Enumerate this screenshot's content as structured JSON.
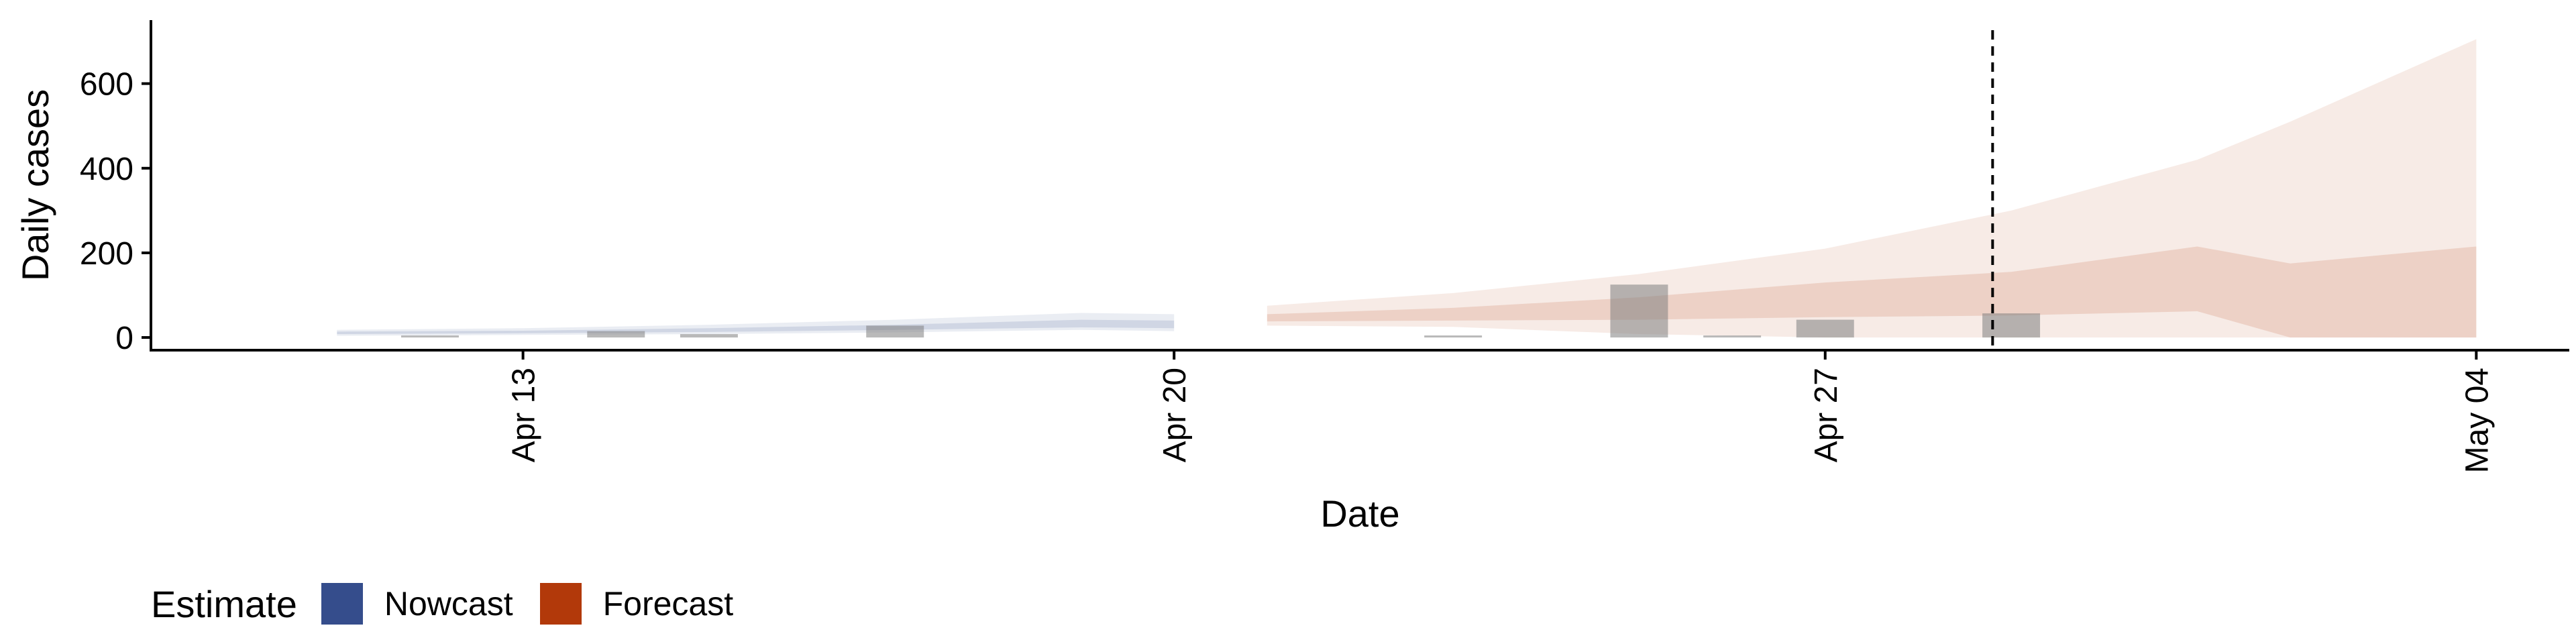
{
  "chart_data": {
    "type": "area",
    "xlabel": "Date",
    "ylabel": "Daily cases",
    "x_range": [
      "2020-04-09",
      "2020-05-05"
    ],
    "ylim": [
      -30,
      750
    ],
    "y_ticks": [
      0,
      200,
      400,
      600
    ],
    "y_tick_labels": [
      "0",
      "200",
      "400",
      "600"
    ],
    "x_ticks": [
      "2020-04-13",
      "2020-04-20",
      "2020-04-27",
      "2020-05-04"
    ],
    "x_tick_labels": [
      "Apr 13",
      "Apr 20",
      "Apr 27",
      "May 04"
    ],
    "grid": false,
    "legend_position": "bottom-left",
    "vline_date": "2020-04-28.8",
    "colors": {
      "Nowcast": "#354D8C",
      "Forecast": "#B2390A",
      "observed": "#7F7F7F"
    },
    "series": [
      {
        "name": "Nowcast",
        "x": [
          "2020-04-11",
          "2020-04-13",
          "2020-04-15",
          "2020-04-17",
          "2020-04-19",
          "2020-04-20"
        ],
        "upper90": [
          18,
          22,
          30,
          42,
          58,
          55
        ],
        "lower90": [
          4,
          6,
          8,
          12,
          18,
          15
        ],
        "upper50": [
          14,
          16,
          22,
          30,
          42,
          40
        ],
        "lower50": [
          8,
          10,
          13,
          18,
          24,
          22
        ]
      },
      {
        "name": "Forecast",
        "x": [
          "2020-04-21",
          "2020-04-23",
          "2020-04-25",
          "2020-04-27",
          "2020-04-29",
          "2020-05-01",
          "2020-05-02",
          "2020-05-04"
        ],
        "upper90": [
          75,
          105,
          150,
          210,
          300,
          420,
          510,
          705
        ],
        "lower90": [
          28,
          25,
          8,
          0,
          0,
          0,
          0,
          0
        ],
        "upper50": [
          55,
          70,
          95,
          130,
          155,
          215,
          175,
          215
        ],
        "lower50": [
          38,
          40,
          42,
          48,
          52,
          62,
          0,
          0
        ]
      }
    ],
    "observed": {
      "x": [
        "2020-04-12",
        "2020-04-14",
        "2020-04-15",
        "2020-04-17",
        "2020-04-23",
        "2020-04-25",
        "2020-04-26",
        "2020-04-27",
        "2020-04-29"
      ],
      "values": [
        4,
        15,
        8,
        28,
        2,
        125,
        2,
        42,
        57
      ]
    }
  },
  "legend": {
    "title": "Estimate",
    "items": [
      {
        "label": "Nowcast",
        "color": "#354D8C"
      },
      {
        "label": "Forecast",
        "color": "#B2390A"
      }
    ]
  }
}
